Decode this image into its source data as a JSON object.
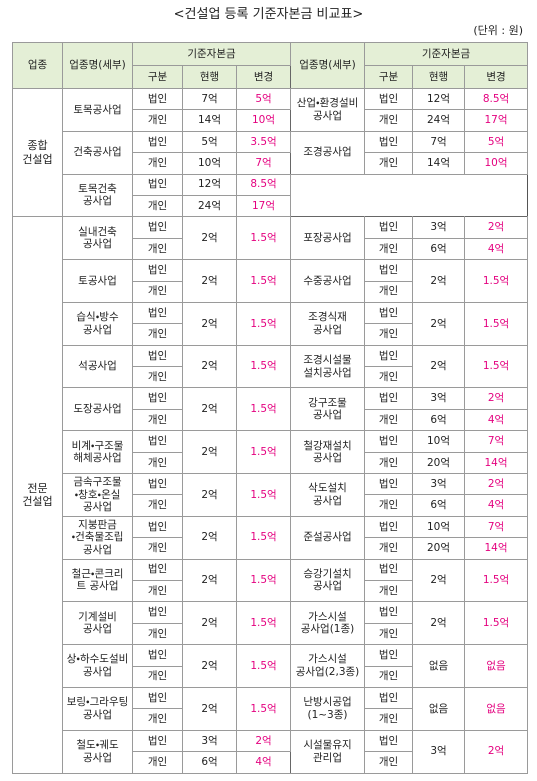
{
  "title": "<건설업 등록 기준자본금 비교표>",
  "unit": "(단위 : 원)",
  "header": {
    "category": "업종",
    "name": "업종명(세부)",
    "capital": "기준자본금",
    "type": "구분",
    "current": "현행",
    "new": "변경"
  },
  "sections": [
    {
      "name": "종합\n건설업",
      "left": [
        {
          "name": "토목공사업",
          "types": [
            "법인",
            "개인"
          ],
          "current": [
            "7억",
            "14억"
          ],
          "new": [
            "5억",
            "10억"
          ]
        },
        {
          "name": "건축공사업",
          "types": [
            "법인",
            "개인"
          ],
          "current": [
            "5억",
            "10억"
          ],
          "new": [
            "3.5억",
            "7억"
          ]
        },
        {
          "name": "토목건축\n공사업",
          "types": [
            "법인",
            "개인"
          ],
          "current": [
            "12억",
            "24억"
          ],
          "new": [
            "8.5억",
            "17억"
          ]
        }
      ],
      "right": [
        {
          "name": "산업・환경설비\n공사업",
          "types": [
            "법인",
            "개인"
          ],
          "current": [
            "12억",
            "24억"
          ],
          "new": [
            "8.5억",
            "17억"
          ]
        },
        {
          "name": "조경공사업",
          "types": [
            "법인",
            "개인"
          ],
          "current": [
            "7억",
            "14억"
          ],
          "new": [
            "5억",
            "10억"
          ]
        }
      ]
    },
    {
      "name": "전문\n건설업",
      "left": [
        {
          "name": "실내건축\n공사업",
          "types": [
            "법인",
            "개인"
          ],
          "current": "2억",
          "new": "1.5억"
        },
        {
          "name": "토공사업",
          "types": [
            "법인",
            "개인"
          ],
          "current": "2억",
          "new": "1.5억"
        },
        {
          "name": "습식・방수\n공사업",
          "types": [
            "법인",
            "개인"
          ],
          "current": "2억",
          "new": "1.5억"
        },
        {
          "name": "석공사업",
          "types": [
            "법인",
            "개인"
          ],
          "current": "2억",
          "new": "1.5억"
        },
        {
          "name": "도장공사업",
          "types": [
            "법인",
            "개인"
          ],
          "current": "2억",
          "new": "1.5억"
        },
        {
          "name": "비계・구조물\n해체공사업",
          "types": [
            "법인",
            "개인"
          ],
          "current": "2억",
          "new": "1.5억"
        },
        {
          "name": "금속구조물\n・창호・온실\n공사업",
          "types": [
            "법인",
            "개인"
          ],
          "current": "2억",
          "new": "1.5억"
        },
        {
          "name": "지붕판금\n・건축물조립\n공사업",
          "types": [
            "법인",
            "개인"
          ],
          "current": "2억",
          "new": "1.5억"
        },
        {
          "name": "철근・콘크리\n트 공사업",
          "types": [
            "법인",
            "개인"
          ],
          "current": "2억",
          "new": "1.5억"
        },
        {
          "name": "기계설비\n공사업",
          "types": [
            "법인",
            "개인"
          ],
          "current": "2억",
          "new": "1.5억"
        },
        {
          "name": "상・하수도설비\n공사업",
          "types": [
            "법인",
            "개인"
          ],
          "current": "2억",
          "new": "1.5억"
        },
        {
          "name": "보링・그라우팅\n공사업",
          "types": [
            "법인",
            "개인"
          ],
          "current": "2억",
          "new": "1.5억"
        },
        {
          "name": "철도・궤도\n공사업",
          "types": [
            "법인",
            "개인"
          ],
          "current": [
            "3억",
            "6억"
          ],
          "new": [
            "2억",
            "4억"
          ]
        }
      ],
      "right": [
        {
          "name": "포장공사업",
          "types": [
            "법인",
            "개인"
          ],
          "current": [
            "3억",
            "6억"
          ],
          "new": [
            "2억",
            "4억"
          ]
        },
        {
          "name": "수중공사업",
          "types": [
            "법인",
            "개인"
          ],
          "current": "2억",
          "new": "1.5억"
        },
        {
          "name": "조경식재\n공사업",
          "types": [
            "법인",
            "개인"
          ],
          "current": "2억",
          "new": "1.5억"
        },
        {
          "name": "조경시설물\n설치공사업",
          "types": [
            "법인",
            "개인"
          ],
          "current": "2억",
          "new": "1.5억"
        },
        {
          "name": "강구조물\n공사업",
          "types": [
            "법인",
            "개인"
          ],
          "current": [
            "3억",
            "6억"
          ],
          "new": [
            "2억",
            "4억"
          ]
        },
        {
          "name": "철강재설치\n공사업",
          "types": [
            "법인",
            "개인"
          ],
          "current": [
            "10억",
            "20억"
          ],
          "new": [
            "7억",
            "14억"
          ]
        },
        {
          "name": "삭도설치\n공사업",
          "types": [
            "법인",
            "개인"
          ],
          "current": [
            "3억",
            "6억"
          ],
          "new": [
            "2억",
            "4억"
          ]
        },
        {
          "name": "준설공사업",
          "types": [
            "법인",
            "개인"
          ],
          "current": [
            "10억",
            "20억"
          ],
          "new": [
            "7억",
            "14억"
          ]
        },
        {
          "name": "승강기설치\n공사업",
          "types": [
            "법인",
            "개인"
          ],
          "current": "2억",
          "new": "1.5억"
        },
        {
          "name": "가스시설\n공사업(1종)",
          "types": [
            "법인",
            "개인"
          ],
          "current": "2억",
          "new": "1.5억"
        },
        {
          "name": "가스시설\n공사업(2,3종)",
          "types": [
            "법인",
            "개인"
          ],
          "current": "없음",
          "new": "없음"
        },
        {
          "name": "난방시공업\n(1~3종)",
          "types": [
            "법인",
            "개인"
          ],
          "current": "없음",
          "new": "없음"
        },
        {
          "name": "시설물유지\n관리업",
          "types": [
            "법인",
            "개인"
          ],
          "current": "3억",
          "new": "2억"
        }
      ]
    }
  ]
}
